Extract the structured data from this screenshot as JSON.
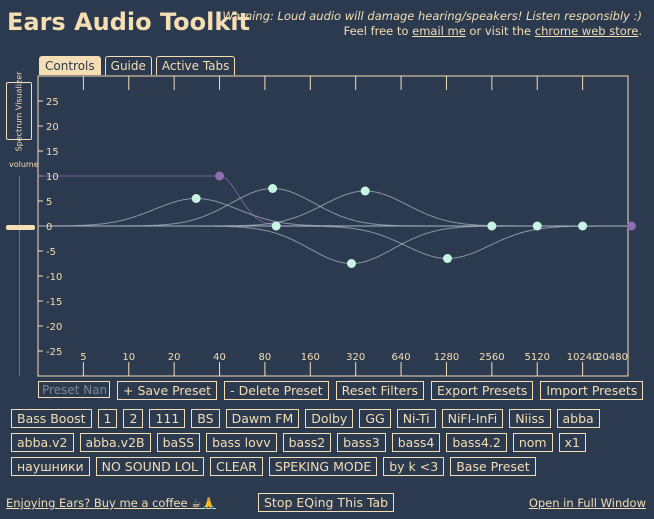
{
  "app": {
    "title": "Ears Audio Toolkit",
    "warning": "Warning: Loud audio will damage hearing/speakers! Listen responsibly :)",
    "feedback_prefix": "Feel free to ",
    "email_link": "email me",
    "feedback_mid": " or visit the ",
    "store_link": "chrome web store",
    "feedback_suffix": "."
  },
  "tabs": [
    {
      "label": "Controls",
      "active": true
    },
    {
      "label": "Guide",
      "active": false
    },
    {
      "label": "Active Tabs",
      "active": false
    }
  ],
  "sidebar": {
    "spectrum_button": "Spectrum Visualizer",
    "volume_label": "volume",
    "volume_value_db": 0
  },
  "equalizer": {
    "y_ticks": [
      25,
      20,
      15,
      10,
      5,
      0,
      -5,
      -10,
      -15,
      -20,
      -25
    ],
    "x_ticks": [
      5,
      10,
      20,
      40,
      80,
      160,
      320,
      640,
      1280,
      2560,
      5120,
      10240,
      20480
    ],
    "filters": [
      {
        "type": "highpass",
        "freq": 40,
        "gain": 10
      },
      {
        "type": "peaking",
        "freq": 28,
        "gain": 5.5
      },
      {
        "type": "peaking",
        "freq": 90,
        "gain": 7.5
      },
      {
        "type": "peaking",
        "freq": 95,
        "gain": 0
      },
      {
        "type": "peaking",
        "freq": 300,
        "gain": -7.5
      },
      {
        "type": "peaking",
        "freq": 370,
        "gain": 7
      },
      {
        "type": "peaking",
        "freq": 1300,
        "gain": -6.5
      },
      {
        "type": "peaking",
        "freq": 2560,
        "gain": 0
      },
      {
        "type": "peaking",
        "freq": 5120,
        "gain": 0
      },
      {
        "type": "peaking",
        "freq": 10240,
        "gain": 0
      },
      {
        "type": "lowpass",
        "freq": 20000,
        "gain": 0
      }
    ],
    "colors": {
      "accent": "#f5deb3",
      "background": "#2b3a4f",
      "node": "#c8f5e3",
      "pass_node": "#8e6db0",
      "curve": "#aab4bd"
    }
  },
  "controls": {
    "preset_placeholder": "Preset Name",
    "save": "+ Save Preset",
    "delete": "- Delete Preset",
    "reset": "Reset Filters",
    "export": "Export Presets",
    "import": "Import Presets"
  },
  "presets": [
    "Bass Boost",
    "1",
    "2",
    "111",
    "BS",
    "Dawm FM",
    "Dolby",
    "GG",
    "Ni-Ti",
    "NiFI-InFi",
    "Niiss",
    "abba",
    "abba.v2",
    "abba.v2B",
    "baSS",
    "bass lovv",
    "bass2",
    "bass3",
    "bass4",
    "bass4.2",
    "nom",
    "x1",
    "наушники",
    "NO SOUND LOL",
    "CLEAR",
    "SPEKING MODE",
    "by k <3",
    "Base Preset"
  ],
  "footer": {
    "coffee": "Enjoying Ears? Buy me a coffee ☕🙏",
    "stop": "Stop EQing This Tab",
    "full_window": "Open in Full Window"
  }
}
